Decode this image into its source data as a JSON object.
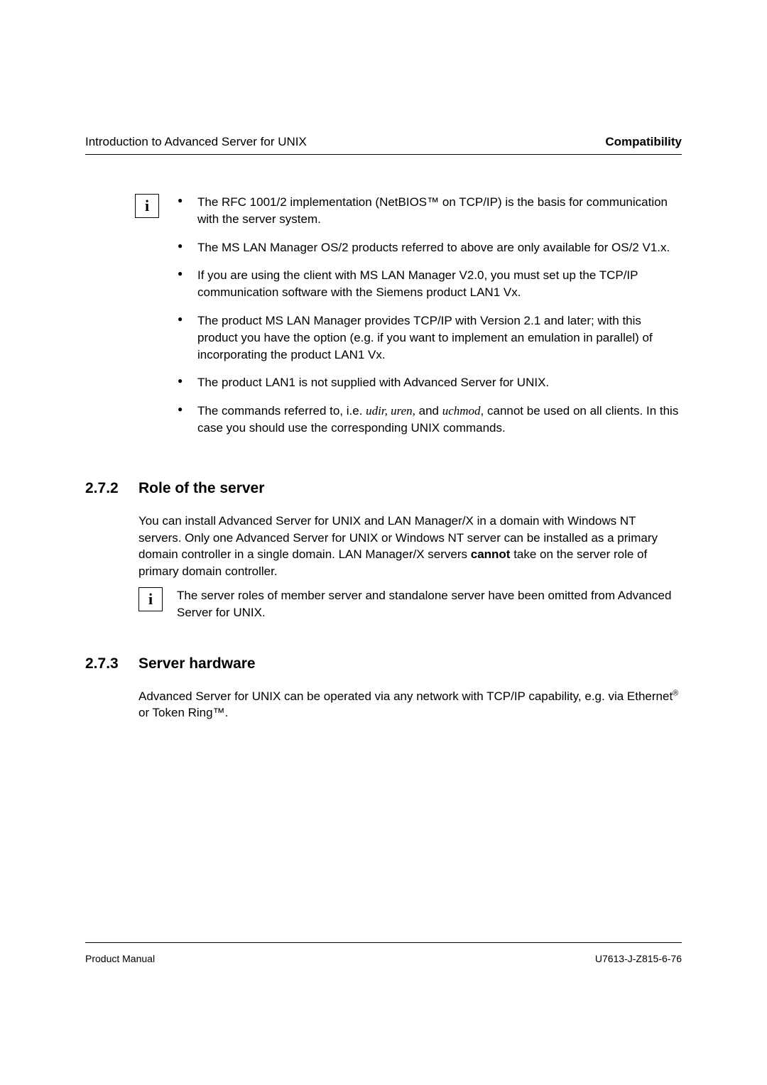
{
  "header": {
    "left": "Introduction to Advanced Server for UNIX",
    "right": "Compatibility"
  },
  "info_bullets": [
    {
      "pre": "The RFC 1001/2 implementation (NetBIOS™ on TCP/IP) is the basis for communication with the server system."
    },
    {
      "pre": "The MS LAN Manager OS/2 products referred to above are only available for OS/2 V1.x."
    },
    {
      "pre": "If you are using the client with MS LAN Manager V2.0, you must set up the TCP/IP communication software with the Siemens product LAN1 Vx."
    },
    {
      "pre": "The product MS LAN Manager provides TCP/IP with Version 2.1 and later; with this product you have the option (e.g. if you want to implement an emulation in parallel) of incorporating the product LAN1 Vx."
    },
    {
      "pre": "The product LAN1 is not supplied with Advanced Server for UNIX."
    },
    {
      "pre": "The commands referred to, i.e. ",
      "it1": "udir, uren,",
      "mid": " and ",
      "it2": "uchmod",
      "post": ", cannot be used on all clients. In this case you should use the corresponding UNIX commands."
    }
  ],
  "section272": {
    "num": "2.7.2",
    "title": "Role of the server",
    "body_pre": "You can install Advanced Server for UNIX and LAN Manager/X in a domain with Windows NT servers. Only one Advanced Server for UNIX or Windows NT server can be installed as a primary domain controller in a single domain. LAN Manager/X servers ",
    "body_bold": "cannot",
    "body_post": " take on the server role of primary domain controller.",
    "note": "The server roles of member server and standalone server have been omitted from Advanced Server for UNIX."
  },
  "section273": {
    "num": "2.7.3",
    "title": "Server hardware",
    "body_pre": "Advanced Server for UNIX can be operated via any network with TCP/IP capability, e.g. via Ethernet",
    "body_sup": "®",
    "body_post": " or Token Ring™."
  },
  "footer": {
    "left": "Product Manual",
    "right": "U7613-J-Z815-6-76"
  }
}
